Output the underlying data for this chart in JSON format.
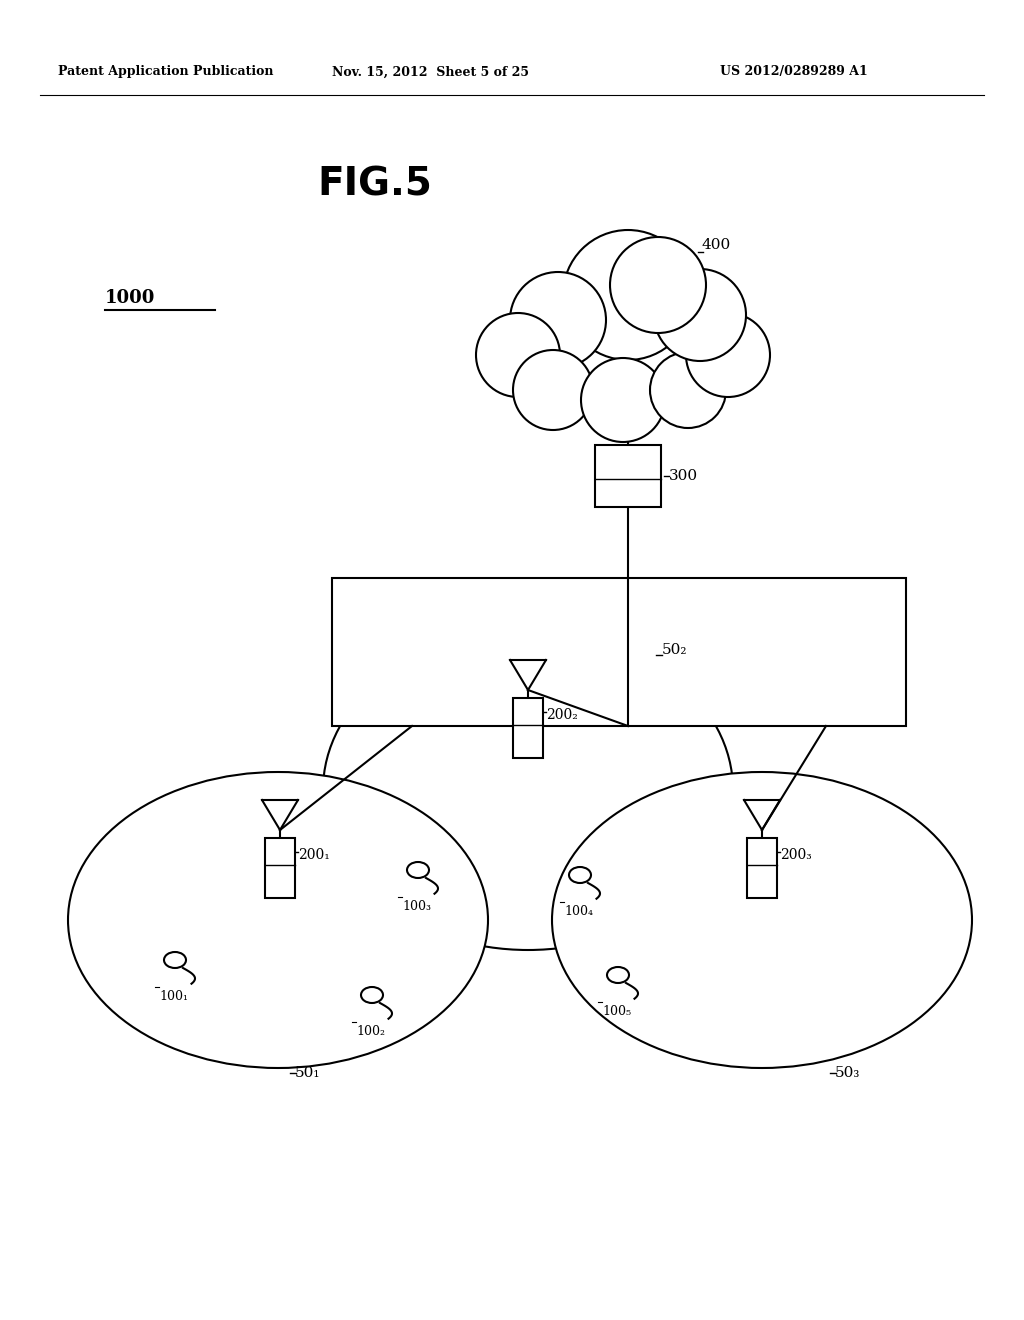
{
  "bg_color": "#ffffff",
  "text_color": "#000000",
  "header_left": "Patent Application Publication",
  "header_mid": "Nov. 15, 2012  Sheet 5 of 25",
  "header_right": "US 2012/0289289 A1",
  "fig_title": "FIG.5",
  "label_1000": "1000",
  "label_400": "400",
  "label_300": "300",
  "label_50_2": "50₂",
  "label_50_1": "50₁",
  "label_50_3": "50₃",
  "label_200_1": "200₁",
  "label_200_2": "200₂",
  "label_200_3": "200₃",
  "label_100_1": "100₁",
  "label_100_2": "100₂",
  "label_100_3": "100₃",
  "label_100_4": "100₄",
  "label_100_5": "100₅"
}
